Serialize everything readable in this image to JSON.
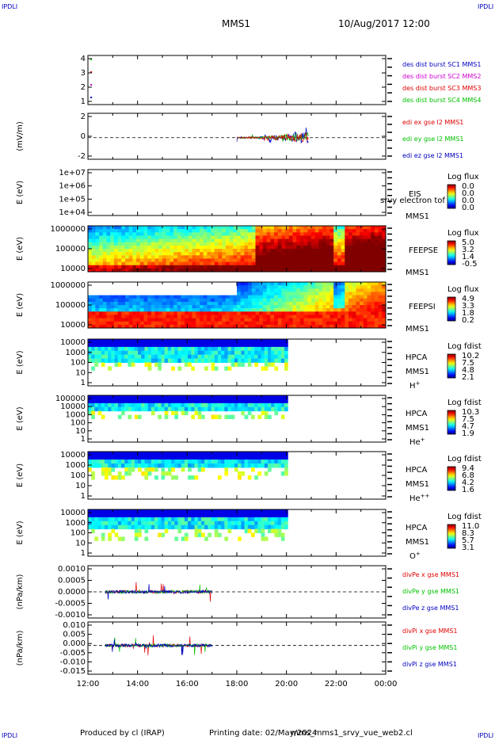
{
  "corners": {
    "tl": "IPDLI",
    "tr": "IPDLI",
    "bl": "IPDLI",
    "br": "IPDLI"
  },
  "header": {
    "title": "MMS1",
    "date": "10/Aug/2017 12:00"
  },
  "footer": {
    "produced": "Produced by cl (IRAP)",
    "printing": "Printing date: 02/May/2024",
    "file": "mms_mms1_srvy_vue_web2.cl"
  },
  "colors": {
    "red": "#e00000",
    "green": "#00c000",
    "blue": "#0000c0",
    "magenta": "#d000d0"
  },
  "chart_data": {
    "type": "line",
    "x_ticks": [
      "12:00",
      "14:00",
      "16:00",
      "18:00",
      "20:00",
      "22:00",
      "00:00"
    ],
    "x_range_hours": [
      12,
      24
    ],
    "panels": [
      {
        "id": "des-burst",
        "type": "scatter",
        "yticks": [
          "4",
          "3",
          "2",
          "1"
        ],
        "ylabel": "",
        "legend": [
          {
            "text": "des dist burst SC1 MMS1",
            "color": "#0000c0"
          },
          {
            "text": "des dist burst SC2 MMS2",
            "color": "#d000d0"
          },
          {
            "text": "des dist burst SC3 MMS3",
            "color": "#e00000"
          },
          {
            "text": "des dist burst SC4 MMS4",
            "color": "#00c000"
          }
        ],
        "points": [
          {
            "x": 12.1,
            "y": 4,
            "color": "#00c000"
          },
          {
            "x": 12.1,
            "y": 3,
            "color": "#e00000"
          },
          {
            "x": 12.1,
            "y": 2,
            "color": "#d000d0"
          },
          {
            "x": 12.1,
            "y": 1,
            "color": "#0000c0"
          }
        ]
      },
      {
        "id": "edi-e",
        "type": "line",
        "ylabel": "(mV/m)",
        "yticks": [
          "2",
          "0",
          "-2"
        ],
        "legend": [
          {
            "text": "edi ex gse l2 MMS1",
            "color": "#e00000"
          },
          {
            "text": "edi ey gse l2 MMS1",
            "color": "#00c000"
          },
          {
            "text": "edi ez gse l2 MMS1",
            "color": "#0000c0"
          }
        ]
      },
      {
        "id": "eis",
        "type": "heatmap",
        "ylabel": "E (eV)",
        "yticks": [
          "1e+07",
          "1e+06",
          "1e+05",
          "1e+04"
        ],
        "labels": [
          "EIS",
          "MMS1"
        ],
        "overlay": "srvy electron tof",
        "cbar_title": "Log flux",
        "cbar_ticks": [
          "0.0",
          "0.0",
          "0.0",
          "0.0"
        ]
      },
      {
        "id": "feepse",
        "type": "heatmap",
        "ylabel": "E (eV)",
        "yticks": [
          "1000000",
          "100000",
          "10000"
        ],
        "labels": [
          "FEEPSE",
          "MMS1"
        ],
        "cbar_title": "Log flux",
        "cbar_ticks": [
          "5.0",
          "3.2",
          "1.4",
          "-0.5"
        ]
      },
      {
        "id": "feepsi",
        "type": "heatmap",
        "ylabel": "E (eV)",
        "yticks": [
          "1000000",
          "100000",
          "10000"
        ],
        "labels": [
          "FEEPSI",
          "MMS1"
        ],
        "cbar_title": "Log flux",
        "cbar_ticks": [
          "4.9",
          "3.3",
          "1.8",
          "0.2"
        ]
      },
      {
        "id": "hpca-h",
        "type": "heatmap",
        "ylabel": "E (eV)",
        "yticks": [
          "10000",
          "1000",
          "100",
          "10",
          "1"
        ],
        "labels": [
          "HPCA",
          "MMS1"
        ],
        "species": "H",
        "sup": "+",
        "cbar_title": "Log fdist",
        "cbar_ticks": [
          "10.2",
          "7.5",
          "4.8",
          "2.1"
        ]
      },
      {
        "id": "hpca-he",
        "type": "heatmap",
        "ylabel": "E (eV)",
        "yticks": [
          "100000",
          "10000",
          "1000",
          "100",
          "10",
          "1"
        ],
        "labels": [
          "HPCA",
          "MMS1"
        ],
        "species": "He",
        "sup": "+",
        "cbar_title": "Log fdist",
        "cbar_ticks": [
          "10.3",
          "7.5",
          "4.7",
          "1.9"
        ]
      },
      {
        "id": "hpca-he2",
        "type": "heatmap",
        "ylabel": "E (eV)",
        "yticks": [
          "10000",
          "1000",
          "100",
          "10",
          "1"
        ],
        "labels": [
          "HPCA",
          "MMS1"
        ],
        "species": "He",
        "sup": "++",
        "cbar_title": "Log fdist",
        "cbar_ticks": [
          "9.4",
          "6.8",
          "4.2",
          "1.6"
        ]
      },
      {
        "id": "hpca-o",
        "type": "heatmap",
        "ylabel": "E (eV)",
        "yticks": [
          "10000",
          "1000",
          "100",
          "10",
          "1"
        ],
        "labels": [
          "HPCA",
          "MMS1"
        ],
        "species": "O",
        "sup": "+",
        "cbar_title": "Log fdist",
        "cbar_ticks": [
          "11.0",
          "8.3",
          "5.7",
          "3.1"
        ]
      },
      {
        "id": "divpe",
        "type": "line",
        "ylabel": "(nPa/km)",
        "yticks": [
          "0.0010",
          "0.0005",
          "0.0000",
          "-0.0005",
          "-0.0010"
        ],
        "legend": [
          {
            "text": "divPe x gse MMS1",
            "color": "#e00000"
          },
          {
            "text": "divPe y gse MMS1",
            "color": "#00c000"
          },
          {
            "text": "divPe z gse MMS1",
            "color": "#0000c0"
          }
        ]
      },
      {
        "id": "divpi",
        "type": "line",
        "ylabel": "(nPa/km)",
        "yticks": [
          "0.010",
          "0.005",
          "0.000",
          "-0.005",
          "-0.010",
          "-0.015"
        ],
        "legend": [
          {
            "text": "divPi x gse MMS1",
            "color": "#e00000"
          },
          {
            "text": "divPi y gse MMS1",
            "color": "#00c000"
          },
          {
            "text": "divPi z gse MMS1",
            "color": "#0000c0"
          }
        ]
      }
    ]
  }
}
